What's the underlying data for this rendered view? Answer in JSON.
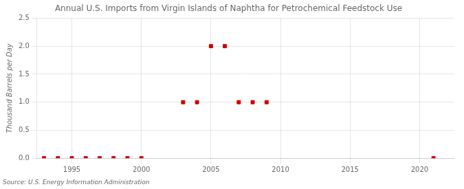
{
  "chart_data": {
    "type": "scatter",
    "title": "Annual U.S. Imports from Virgin Islands of Naphtha for Petrochemical Feedstock Use",
    "ylabel": "Thousand Barrels per Day",
    "annotations": [
      "Source: U.S. Energy Information Administration"
    ],
    "x": [
      1993,
      1994,
      1995,
      1996,
      1997,
      1998,
      1999,
      2000,
      2003,
      2004,
      2005,
      2006,
      2007,
      2008,
      2009,
      2021
    ],
    "values": [
      0.0,
      0.0,
      0.0,
      0.0,
      0.0,
      0.0,
      0.0,
      0.0,
      1.0,
      1.0,
      2.0,
      2.0,
      1.0,
      1.0,
      1.0,
      0.0
    ],
    "color": "#cc0000",
    "marker": "square",
    "xlim": [
      1992.5,
      2022.5
    ],
    "ylim": [
      0.0,
      2.5
    ],
    "xticks": [
      1995,
      2000,
      2005,
      2010,
      2015,
      2020
    ],
    "yticks": [
      {
        "value": 0,
        "label": "0.0"
      },
      0.5,
      {
        "value": 1,
        "label": "1.0"
      },
      1.5,
      {
        "value": 2,
        "label": "2.0"
      },
      2.5
    ],
    "grid": true
  }
}
